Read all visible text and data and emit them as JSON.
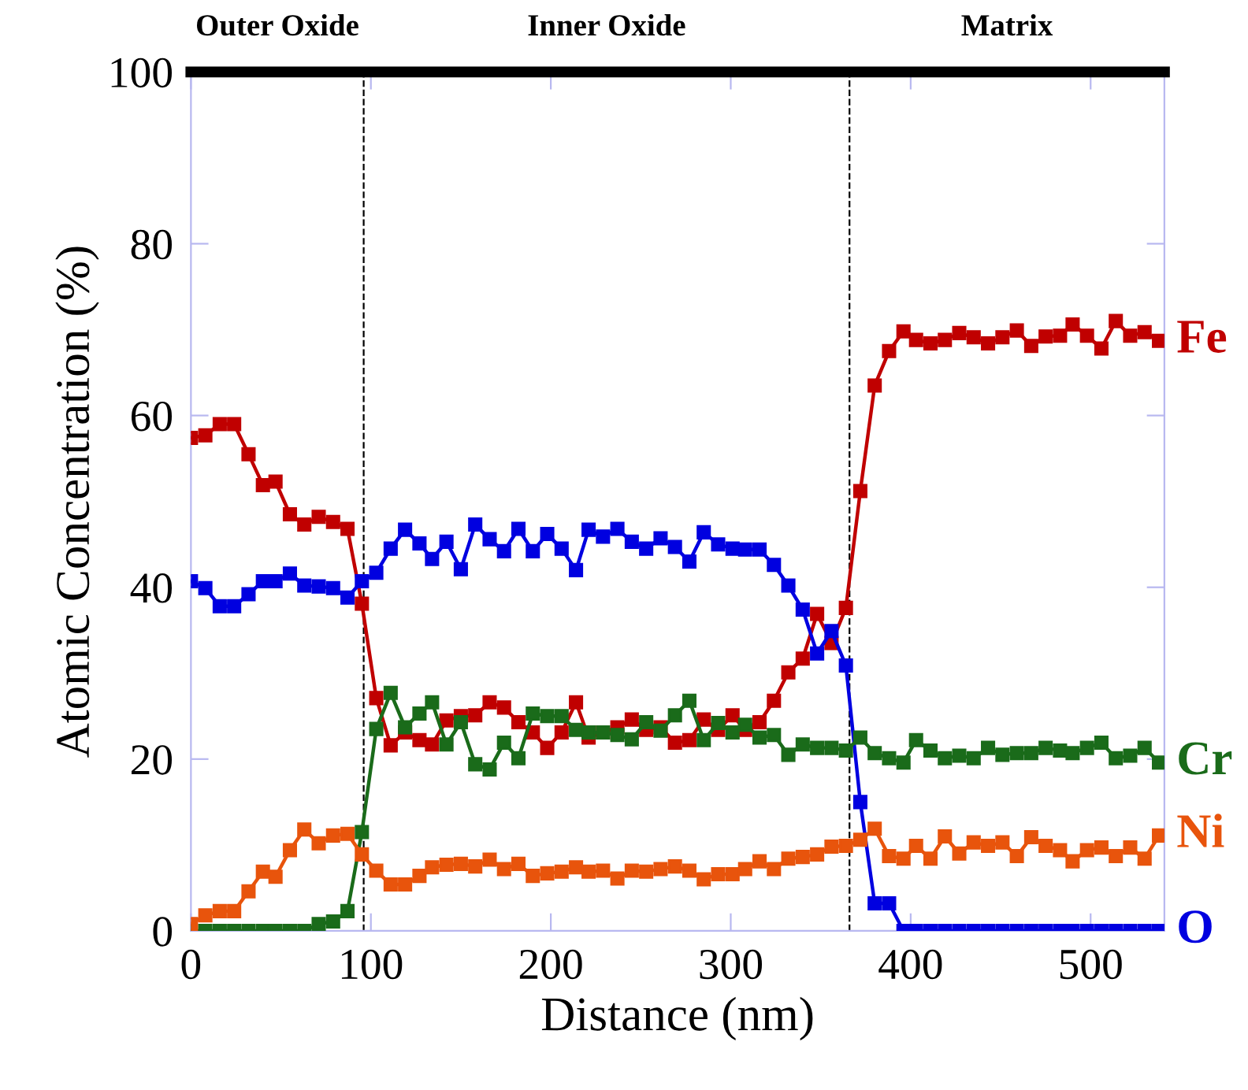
{
  "chart_data": {
    "type": "line",
    "xlabel": "Distance (nm)",
    "ylabel": "Atomic Concentration (%)",
    "x": [
      0,
      8,
      16,
      24,
      32,
      40,
      47,
      55,
      63,
      71,
      79,
      87,
      95,
      103,
      111,
      119,
      127,
      134,
      142,
      150,
      158,
      166,
      174,
      182,
      190,
      198,
      206,
      214,
      221,
      229,
      237,
      245,
      253,
      261,
      269,
      277,
      285,
      293,
      301,
      308,
      316,
      324,
      332,
      340,
      348,
      356,
      364,
      372,
      380,
      388,
      396,
      403,
      411,
      419,
      427,
      435,
      443,
      451,
      459,
      467,
      475,
      483,
      490,
      498,
      506,
      514,
      522,
      530,
      538
    ],
    "series": [
      {
        "name": "Fe",
        "color": "#c00000",
        "values": [
          57.4,
          57.7,
          59,
          59,
          55.5,
          51.9,
          52.3,
          48.5,
          47.3,
          48.2,
          47.6,
          46.8,
          38.1,
          27.1,
          21.6,
          23.1,
          22.2,
          21.7,
          24.5,
          25,
          25.1,
          26.6,
          26,
          24.3,
          23.1,
          21.3,
          23.1,
          26.6,
          22.5,
          23.1,
          23.7,
          24.6,
          23.4,
          23.7,
          21.9,
          22.2,
          24.6,
          23.4,
          25.1,
          23.4,
          24.3,
          26.8,
          30.1,
          31.7,
          36.9,
          33.5,
          37.6,
          51.2,
          63.5,
          67.5,
          69.8,
          68.8,
          68.4,
          68.8,
          69.6,
          69.1,
          68.4,
          69.1,
          69.9,
          68.1,
          69.2,
          69.3,
          70.6,
          69.3,
          67.8,
          71,
          69.3,
          69.7,
          68.7
        ]
      },
      {
        "name": "O",
        "color": "#0000e0",
        "values": [
          40.7,
          39.9,
          37.8,
          37.8,
          39.2,
          40.7,
          40.7,
          41.6,
          40.2,
          40.1,
          39.9,
          38.8,
          40.7,
          41.7,
          44.5,
          46.7,
          45.1,
          43.3,
          45.3,
          42.1,
          47.3,
          45.6,
          44.2,
          46.8,
          44.2,
          46.2,
          44.5,
          42,
          46.7,
          45.9,
          46.8,
          45.3,
          44.5,
          45.7,
          44.7,
          43,
          46.4,
          45,
          44.5,
          44.4,
          44.4,
          42.6,
          40.2,
          37.4,
          32.3,
          34.9,
          30.9,
          15,
          3.2,
          3.2,
          0,
          0,
          0,
          0,
          0,
          0,
          0,
          0,
          0,
          0,
          0,
          0,
          0,
          0,
          0,
          0,
          0,
          0,
          0
        ]
      },
      {
        "name": "Cr",
        "color": "#1a6b1a",
        "values": [
          0,
          0,
          0,
          0,
          0,
          0,
          0,
          0,
          0,
          0.8,
          1.1,
          2.3,
          11.5,
          23.5,
          27.7,
          23.7,
          25.3,
          26.6,
          21.7,
          24.3,
          19.4,
          18.8,
          21.9,
          20.1,
          25.3,
          25,
          25,
          23.4,
          23.1,
          23.1,
          22.8,
          22.3,
          24.3,
          23.3,
          25.1,
          26.8,
          22.2,
          24.2,
          23.1,
          24,
          22.5,
          22.8,
          20.5,
          21.7,
          21.3,
          21.3,
          21,
          22.5,
          20.7,
          20.1,
          19.6,
          22.2,
          21,
          20.1,
          20.4,
          20.1,
          21.3,
          20.5,
          20.7,
          20.7,
          21.3,
          21,
          20.7,
          21.3,
          21.9,
          20.1,
          20.4,
          21.3,
          19.6
        ]
      },
      {
        "name": "Ni",
        "color": "#e8540c",
        "values": [
          0.8,
          1.8,
          2.3,
          2.3,
          4.6,
          6.9,
          6.3,
          9.4,
          11.8,
          10.2,
          11.1,
          11.3,
          8.9,
          7,
          5.4,
          5.4,
          6.4,
          7.4,
          7.7,
          7.8,
          7.5,
          8.3,
          7.2,
          7.8,
          6.4,
          6.7,
          6.9,
          7.4,
          6.9,
          7,
          6.1,
          7,
          6.9,
          7.2,
          7.5,
          7,
          6,
          6.6,
          6.6,
          7.2,
          8.1,
          7.2,
          8.4,
          8.6,
          8.9,
          9.8,
          9.9,
          10.6,
          11.9,
          8.7,
          8.4,
          9.9,
          8.4,
          11,
          9,
          10.3,
          9.9,
          10.3,
          8.7,
          10.9,
          9.9,
          9.4,
          8.1,
          9.4,
          9.7,
          8.7,
          9.7,
          8.4,
          11.1
        ]
      }
    ],
    "xlim": [
      0,
      541
    ],
    "xticks": [
      0,
      100,
      200,
      300,
      400,
      500
    ],
    "ylim": [
      0,
      100
    ],
    "yticks": [
      0,
      20,
      40,
      60,
      80,
      100
    ],
    "marker": "square",
    "line_style": "solid",
    "grid": false,
    "legend": false,
    "ref_lines": [
      {
        "axis": "x",
        "value": 96,
        "color": "#000000",
        "line_style": "dashed"
      },
      {
        "axis": "x",
        "value": 366,
        "color": "#000000",
        "line_style": "dashed"
      },
      {
        "axis": "y",
        "value": 100,
        "color": "#000000",
        "line_style": "solid"
      }
    ],
    "annotations": [
      "Outer Oxide",
      "Inner Oxide",
      "Matrix"
    ]
  }
}
